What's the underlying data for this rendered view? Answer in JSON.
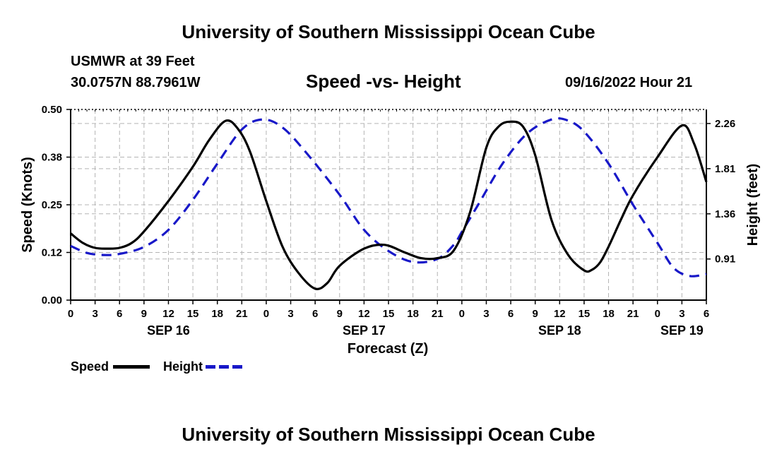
{
  "header": {
    "title": "University of Southern Mississippi Ocean Cube",
    "station": "USMWR at 39 Feet",
    "coords": "30.0757N  88.7961W",
    "datetime": "09/16/2022 Hour 21",
    "footer_title": "University of Southern Mississippi Ocean Cube"
  },
  "chart_data": {
    "type": "line",
    "title": "Speed -vs- Height",
    "xlabel": "Forecast (Z)",
    "ylabel": "Speed (Knots)",
    "y2label": "Height (feet)",
    "x_range_hours": [
      0,
      78
    ],
    "x_ticks": [
      {
        "h": 0,
        "label": "0"
      },
      {
        "h": 3,
        "label": "3"
      },
      {
        "h": 6,
        "label": "6"
      },
      {
        "h": 9,
        "label": "9"
      },
      {
        "h": 12,
        "label": "12"
      },
      {
        "h": 15,
        "label": "15"
      },
      {
        "h": 18,
        "label": "18"
      },
      {
        "h": 21,
        "label": "21"
      },
      {
        "h": 24,
        "label": "0"
      },
      {
        "h": 27,
        "label": "3"
      },
      {
        "h": 30,
        "label": "6"
      },
      {
        "h": 33,
        "label": "9"
      },
      {
        "h": 36,
        "label": "12"
      },
      {
        "h": 39,
        "label": "15"
      },
      {
        "h": 42,
        "label": "18"
      },
      {
        "h": 45,
        "label": "21"
      },
      {
        "h": 48,
        "label": "0"
      },
      {
        "h": 51,
        "label": "3"
      },
      {
        "h": 54,
        "label": "6"
      },
      {
        "h": 57,
        "label": "9"
      },
      {
        "h": 60,
        "label": "12"
      },
      {
        "h": 63,
        "label": "15"
      },
      {
        "h": 66,
        "label": "18"
      },
      {
        "h": 69,
        "label": "21"
      },
      {
        "h": 72,
        "label": "0"
      },
      {
        "h": 75,
        "label": "3"
      },
      {
        "h": 78,
        "label": "6"
      }
    ],
    "date_labels": [
      {
        "h": 12,
        "label": "SEP 16"
      },
      {
        "h": 36,
        "label": "SEP 17"
      },
      {
        "h": 60,
        "label": "SEP 18"
      },
      {
        "h": 75,
        "label": "SEP 19"
      }
    ],
    "ylim": [
      0,
      0.5
    ],
    "y_ticks": [
      {
        "v": 0.0,
        "label": "0.00"
      },
      {
        "v": 0.125,
        "label": "0.12"
      },
      {
        "v": 0.25,
        "label": "0.25"
      },
      {
        "v": 0.375,
        "label": "0.38"
      },
      {
        "v": 0.5,
        "label": "0.50"
      }
    ],
    "y2lim": [
      0.5,
      2.4
    ],
    "y2_ticks": [
      {
        "v": 0.91,
        "label": "0.91"
      },
      {
        "v": 1.36,
        "label": "1.36"
      },
      {
        "v": 1.81,
        "label": "1.81"
      },
      {
        "v": 2.26,
        "label": "2.26"
      }
    ],
    "series": [
      {
        "name": "Speed",
        "axis": "left",
        "color": "#000000",
        "dash": "none",
        "x": [
          0,
          1.5,
          3,
          4.5,
          6,
          7.5,
          9,
          12,
          15,
          17,
          19,
          20.5,
          22,
          24,
          26,
          28,
          30,
          31.5,
          33,
          36,
          38.5,
          41,
          43,
          45,
          47,
          49,
          51,
          52.5,
          54,
          55.5,
          57,
          59,
          61,
          63,
          64,
          65,
          66,
          67.5,
          69,
          72,
          75,
          76.5,
          78
        ],
        "values": [
          0.175,
          0.15,
          0.137,
          0.135,
          0.137,
          0.15,
          0.18,
          0.26,
          0.35,
          0.42,
          0.47,
          0.45,
          0.39,
          0.26,
          0.14,
          0.07,
          0.03,
          0.045,
          0.09,
          0.135,
          0.145,
          0.125,
          0.11,
          0.11,
          0.13,
          0.23,
          0.4,
          0.455,
          0.468,
          0.455,
          0.38,
          0.21,
          0.12,
          0.078,
          0.08,
          0.1,
          0.14,
          0.21,
          0.275,
          0.375,
          0.458,
          0.41,
          0.31
        ]
      },
      {
        "name": "Height",
        "axis": "right",
        "color": "#1818c8",
        "dash": "14 9",
        "x": [
          0,
          2,
          4,
          6,
          9,
          12,
          15,
          18,
          21,
          23.5,
          26,
          29,
          33,
          36,
          39,
          42,
          45,
          47,
          48,
          50,
          53,
          56,
          59,
          61,
          63,
          66,
          69,
          72,
          74,
          76,
          78
        ],
        "values": [
          1.04,
          0.97,
          0.95,
          0.96,
          1.03,
          1.2,
          1.5,
          1.86,
          2.2,
          2.3,
          2.22,
          1.96,
          1.55,
          1.2,
          0.99,
          0.88,
          0.91,
          1.05,
          1.18,
          1.45,
          1.86,
          2.16,
          2.3,
          2.29,
          2.18,
          1.86,
          1.45,
          1.07,
          0.82,
          0.74,
          0.76
        ]
      }
    ]
  },
  "legend": {
    "speed_label": "Speed",
    "height_label": "Height"
  }
}
